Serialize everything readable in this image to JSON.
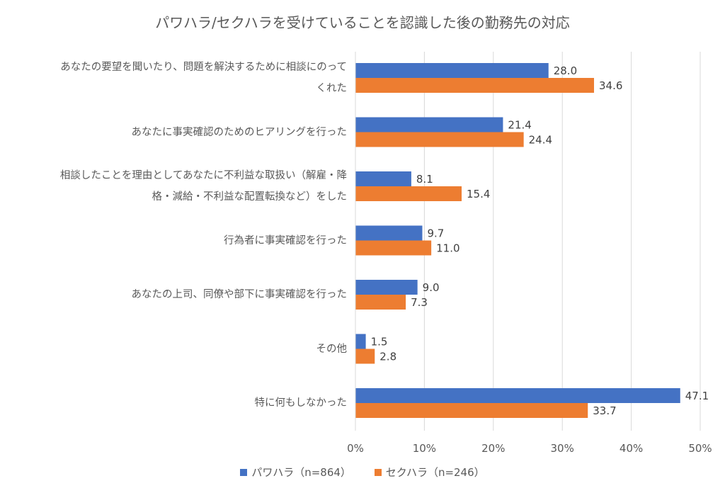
{
  "chart_data": {
    "type": "bar",
    "orientation": "horizontal",
    "title": "パワハラ/セクハラを受けていることを認識した後の勤務先の対応",
    "categories": [
      [
        "あなたの要望を聞いたり、問題を解決するために相談にのって",
        "くれた"
      ],
      [
        "あなたに事実確認のためのヒアリングを行った"
      ],
      [
        "相談したことを理由としてあなたに不利益な取扱い（解雇・降",
        "格・減給・不利益な配置転換など）をした"
      ],
      [
        "行為者に事実確認を行った"
      ],
      [
        "あなたの上司、同僚や部下に事実確認を行った"
      ],
      [
        "その他"
      ],
      [
        "特に何もしなかった"
      ]
    ],
    "series": [
      {
        "name": "パワハラ（n=864）",
        "color": "#4472c4",
        "values": [
          28.0,
          21.4,
          8.1,
          9.7,
          9.0,
          1.5,
          47.1
        ],
        "labels": [
          "28.0",
          "21.4",
          "8.1",
          "9.7",
          "9.0",
          "1.5",
          "47.1"
        ]
      },
      {
        "name": "セクハラ（n=246）",
        "color": "#ed7d31",
        "values": [
          34.6,
          24.4,
          15.4,
          11.0,
          7.3,
          2.8,
          33.7
        ],
        "labels": [
          "34.6",
          "24.4",
          "15.4",
          "11.0",
          "7.3",
          "2.8",
          "33.7"
        ]
      }
    ],
    "xlim": [
      0,
      50
    ],
    "x_ticks": [
      "0%",
      "10%",
      "20%",
      "30%",
      "40%",
      "50%"
    ],
    "x_tick_values": [
      0,
      10,
      20,
      30,
      40,
      50
    ],
    "grid": "vertical",
    "legend": "bottom"
  }
}
